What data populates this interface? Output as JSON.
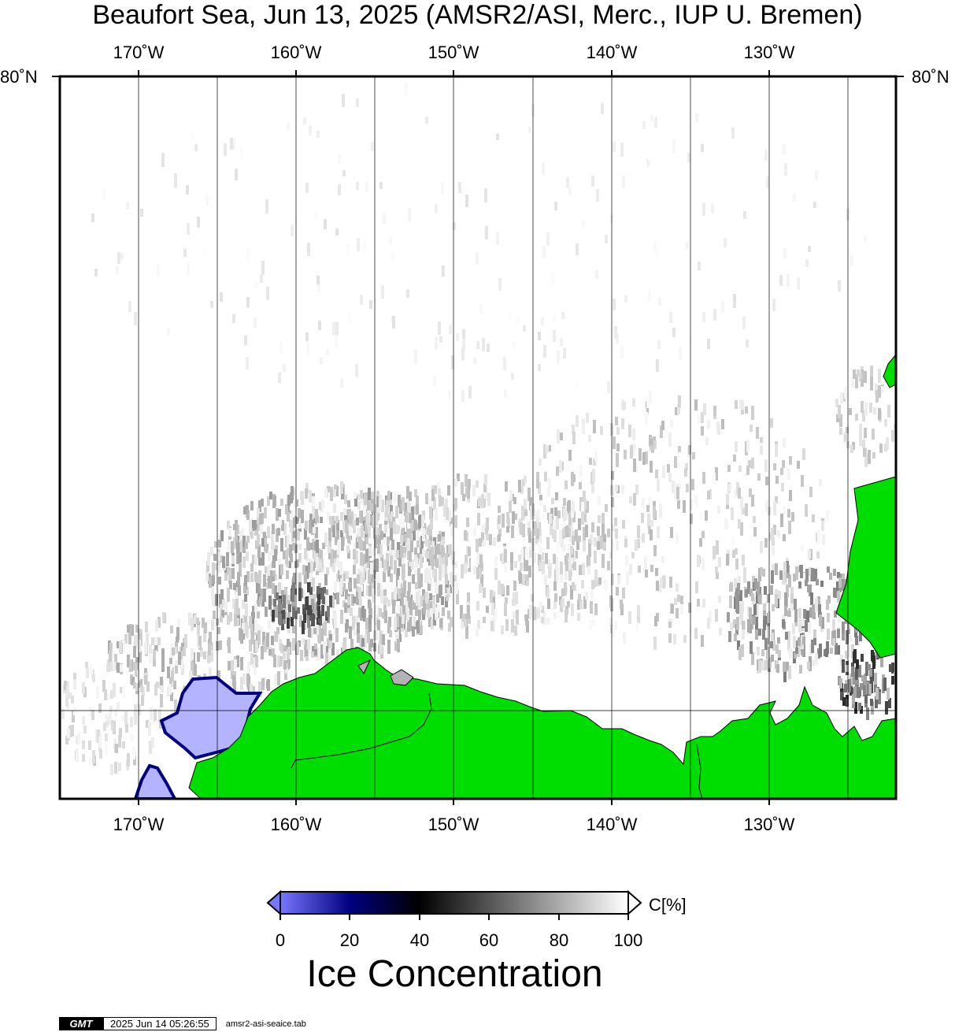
{
  "title": "Beaufort Sea, Jun 13, 2025 (AMSR2/ASI, Merc., IUP U. Bremen)",
  "map": {
    "lon_labels_top": [
      "170˚W",
      "160˚W",
      "150˚W",
      "140˚W",
      "130˚W"
    ],
    "lon_labels_bottom": [
      "170˚W",
      "160˚W",
      "150˚W",
      "140˚W",
      "130˚W"
    ],
    "lat_label_left": "80˚N",
    "lat_label_right": "80˚N",
    "ocean_color": "#ffffff",
    "land_color": "#00dd00",
    "masked_color": "#b3b3ff"
  },
  "colorbar": {
    "ticks": [
      "0",
      "20",
      "40",
      "60",
      "80",
      "100"
    ],
    "unit": "C[%]",
    "title": "Ice Concentration",
    "stops": [
      "#7777ff",
      "#000080",
      "#000000",
      "#555555",
      "#aaaaaa",
      "#ffffff"
    ]
  },
  "footer": {
    "logo": "GMT",
    "timestamp": "2025 Jun 14 05:26:55",
    "filename": "amsr2-asi-seaice.tab"
  }
}
